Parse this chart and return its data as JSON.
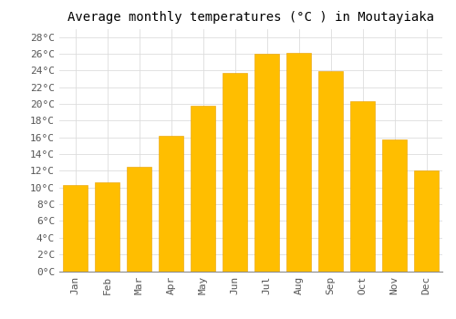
{
  "title": "Average monthly temperatures (°C ) in Moutayiaka",
  "months": [
    "Jan",
    "Feb",
    "Mar",
    "Apr",
    "May",
    "Jun",
    "Jul",
    "Aug",
    "Sep",
    "Oct",
    "Nov",
    "Dec"
  ],
  "values": [
    10.3,
    10.6,
    12.5,
    16.2,
    19.8,
    23.7,
    26.0,
    26.1,
    23.9,
    20.3,
    15.8,
    12.1
  ],
  "bar_color_top": "#FFBE00",
  "bar_color_bottom": "#FFA000",
  "bar_edge_color": "#E8A000",
  "background_color": "#FFFFFF",
  "grid_color": "#DDDDDD",
  "ylim": [
    0,
    29
  ],
  "title_fontsize": 10,
  "tick_fontsize": 8,
  "font_family": "monospace"
}
